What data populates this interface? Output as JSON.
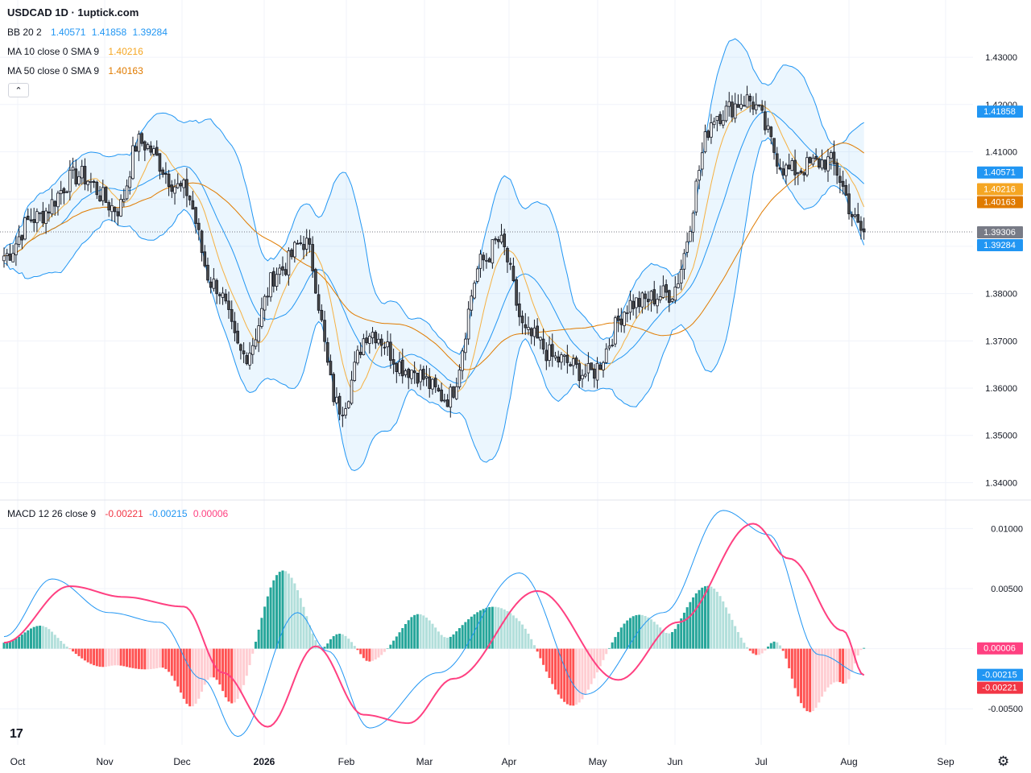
{
  "title": "USDCAD 1D · 1uptick.com",
  "legends": {
    "bb": {
      "label": "BB 20 2",
      "values": [
        "1.40571",
        "1.41858",
        "1.39284"
      ],
      "color": "#2196f3"
    },
    "ma10": {
      "label": "MA 10 close 0 SMA 9",
      "value": "1.40216",
      "color": "#f5a623"
    },
    "ma50": {
      "label": "MA 50 close 0 SMA 9",
      "value": "1.40163",
      "color": "#e07b00"
    },
    "macd": {
      "label": "MACD 12 26 close 9",
      "values": [
        "-0.00221",
        "-0.00215",
        "0.00006"
      ],
      "colors": [
        "#f23645",
        "#2196f3",
        "#ff4081"
      ]
    }
  },
  "icons": {
    "collapse": "chevron-up-icon",
    "logo": "tradingview-logo",
    "settings": "gear-icon"
  },
  "logo_text": "17",
  "collapse_glyph": "⌃",
  "gear_glyph": "⚙",
  "chart_data": {
    "type": "candlestick",
    "price_axis": {
      "ticks": [
        "1.43000",
        "1.42000",
        "1.41000",
        "1.40000",
        "1.39000",
        "1.38000",
        "1.37000",
        "1.36000",
        "1.35000",
        "1.34000"
      ],
      "range": [
        1.3365,
        1.437
      ]
    },
    "macd_axis": {
      "ticks": [
        "0.01000",
        "0.00500",
        "0.00000",
        "-0.00500"
      ],
      "range": [
        -0.008,
        0.0123
      ]
    },
    "x_labels": [
      "Oct",
      "Nov",
      "Dec",
      "2026",
      "Feb",
      "Mar",
      "Apr",
      "May",
      "Jun",
      "Jul",
      "Aug",
      "Sep"
    ],
    "price_badges": [
      {
        "text": "1.41858",
        "value": 1.41858,
        "bg": "#2196f3"
      },
      {
        "text": "1.40571",
        "value": 1.40571,
        "bg": "#2196f3"
      },
      {
        "text": "1.40216",
        "value": 1.40216,
        "bg": "#f5a623"
      },
      {
        "text": "1.40163",
        "value": 1.40163,
        "bg": "#e07b00"
      },
      {
        "text": "1.39306",
        "value": 1.39306,
        "bg": "#787b86"
      },
      {
        "text": "1.39284",
        "value": 1.39284,
        "bg": "#2196f3"
      }
    ],
    "macd_badges": [
      {
        "text": "0.00006",
        "value": 6e-05,
        "bg": "#ff4081"
      },
      {
        "text": "-0.00215",
        "value": -0.00215,
        "bg": "#2196f3"
      },
      {
        "text": "-0.00221",
        "value": -0.00221,
        "bg": "#f23645"
      }
    ],
    "last_price": 1.39306,
    "close_anchors": [
      [
        0,
        1.388
      ],
      [
        10,
        1.396
      ],
      [
        25,
        1.405
      ],
      [
        38,
        1.398
      ],
      [
        45,
        1.412
      ],
      [
        60,
        1.402
      ],
      [
        70,
        1.382
      ],
      [
        80,
        1.367
      ],
      [
        92,
        1.385
      ],
      [
        100,
        1.391
      ],
      [
        112,
        1.356
      ],
      [
        122,
        1.372
      ],
      [
        135,
        1.364
      ],
      [
        148,
        1.358
      ],
      [
        160,
        1.387
      ],
      [
        165,
        1.391
      ],
      [
        175,
        1.371
      ],
      [
        185,
        1.366
      ],
      [
        195,
        1.363
      ],
      [
        210,
        1.378
      ],
      [
        222,
        1.38
      ],
      [
        238,
        1.418
      ],
      [
        248,
        1.421
      ],
      [
        262,
        1.406
      ],
      [
        275,
        1.408
      ],
      [
        287,
        1.393
      ]
    ],
    "macd_series": [
      [
        0,
        0.001
      ],
      [
        16,
        0.0058
      ],
      [
        35,
        0.003
      ],
      [
        52,
        0.0022
      ],
      [
        66,
        -0.0025
      ],
      [
        78,
        -0.0073
      ],
      [
        98,
        0.003
      ],
      [
        108,
        -0.0002
      ],
      [
        122,
        -0.0066
      ],
      [
        145,
        -0.002
      ],
      [
        172,
        0.0063
      ],
      [
        194,
        -0.0038
      ],
      [
        220,
        0.003
      ],
      [
        240,
        0.0115
      ],
      [
        255,
        0.0095
      ],
      [
        272,
        -0.0005
      ],
      [
        287,
        -0.00215
      ]
    ],
    "signal_series": [
      [
        0,
        0.0005
      ],
      [
        22,
        0.0052
      ],
      [
        40,
        0.0043
      ],
      [
        60,
        0.0035
      ],
      [
        73,
        -0.002
      ],
      [
        88,
        -0.0065
      ],
      [
        104,
        0.0002
      ],
      [
        120,
        -0.0055
      ],
      [
        135,
        -0.0062
      ],
      [
        150,
        -0.0025
      ],
      [
        178,
        0.0048
      ],
      [
        205,
        -0.0026
      ],
      [
        225,
        0.0022
      ],
      [
        250,
        0.0104
      ],
      [
        262,
        0.0075
      ],
      [
        280,
        0.0015
      ],
      [
        287,
        -0.00221
      ]
    ]
  }
}
